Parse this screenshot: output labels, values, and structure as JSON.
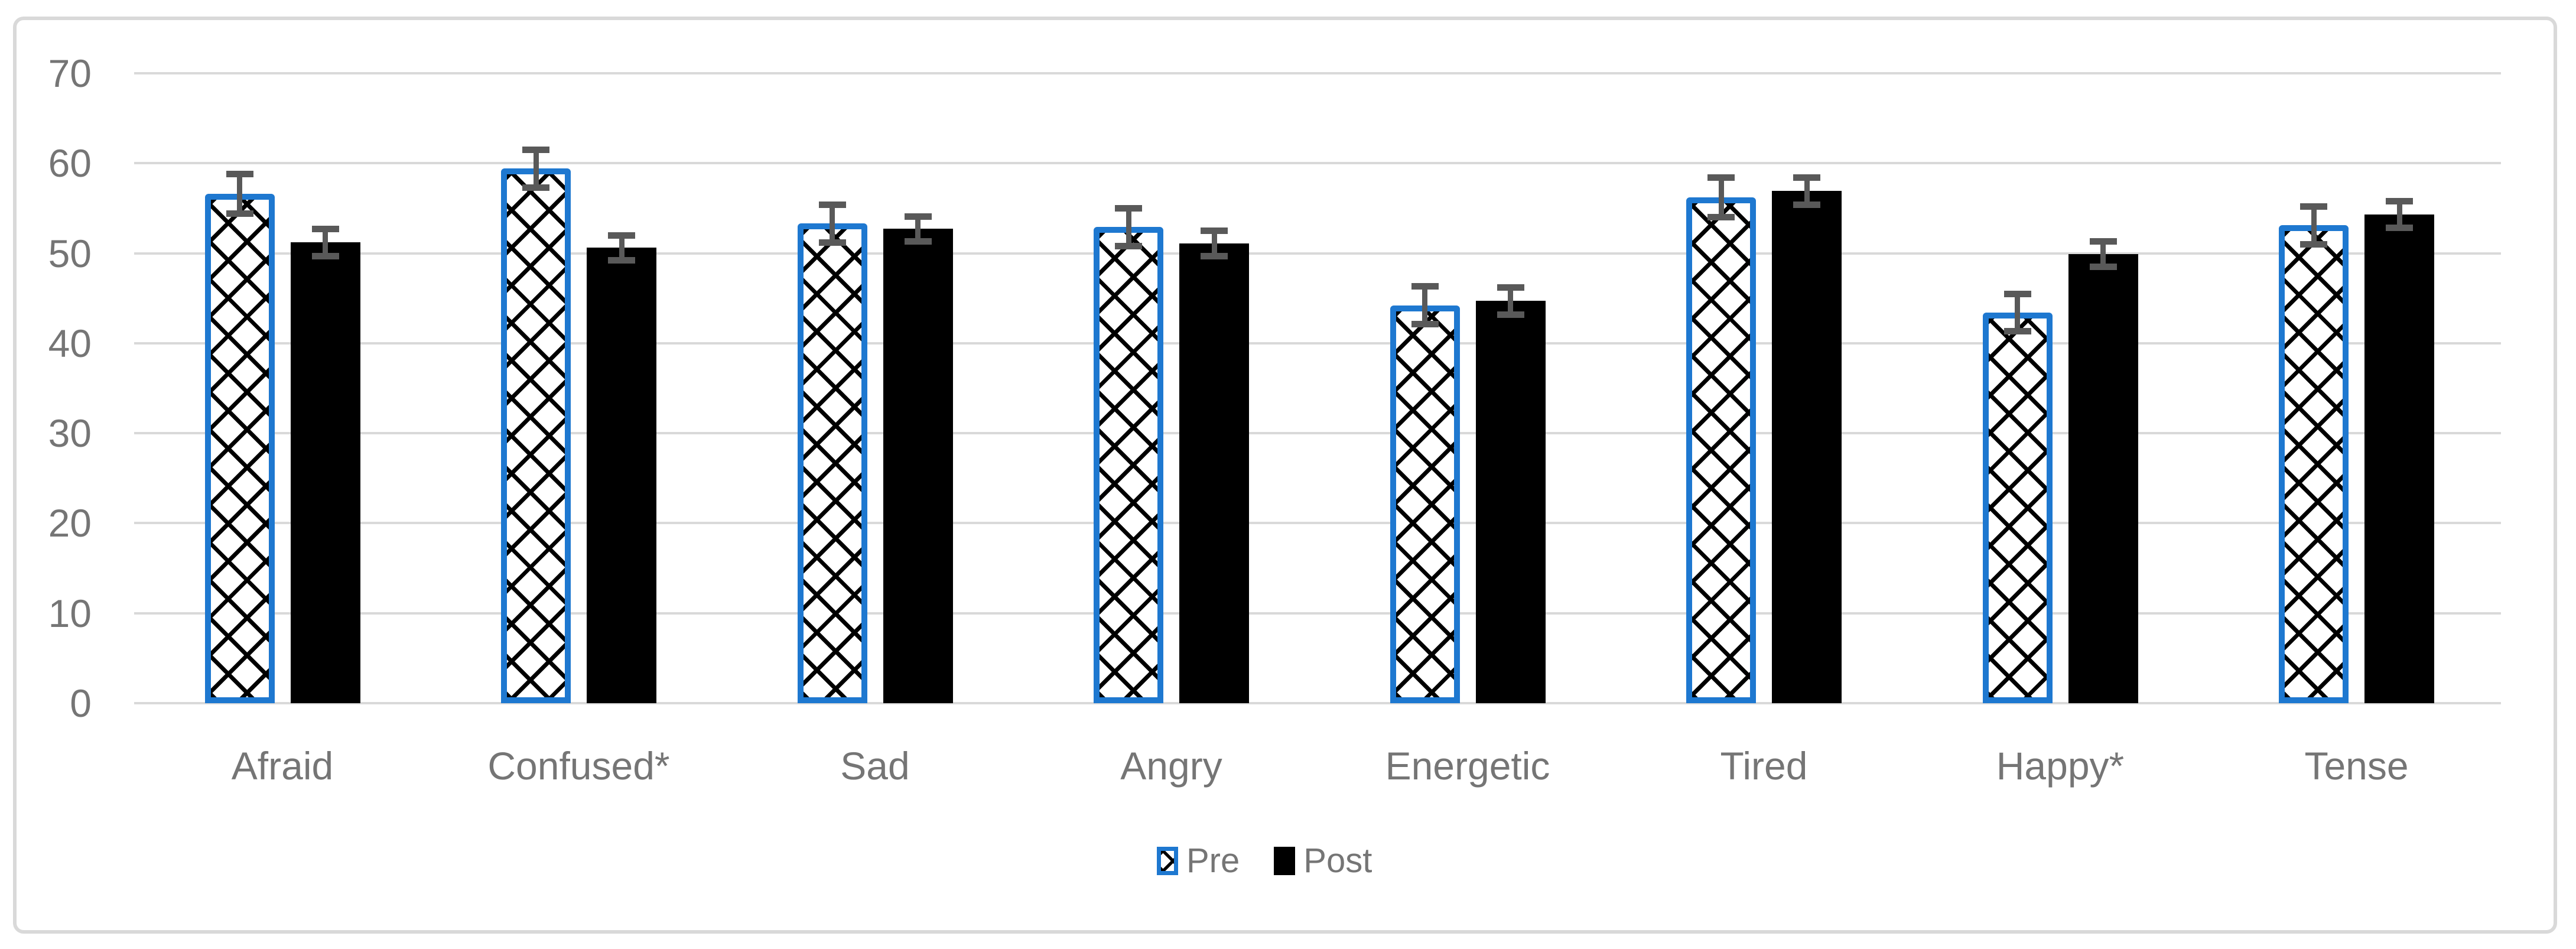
{
  "chart_data": {
    "type": "bar",
    "title": "",
    "xlabel": "",
    "ylabel": "",
    "categories": [
      "Afraid",
      "Confused*",
      "Sad",
      "Angry",
      "Energetic",
      "Tired",
      "Happy*",
      "Tense"
    ],
    "series": [
      {
        "name": "Pre",
        "style": "white-crosshatch-blue-border",
        "values": [
          56.6,
          59.4,
          53.3,
          52.9,
          44.2,
          56.2,
          43.4,
          53.1
        ],
        "errors": [
          2.1,
          2.0,
          2.0,
          2.0,
          2.0,
          2.1,
          2.0,
          2.0
        ]
      },
      {
        "name": "Post",
        "style": "solid-black",
        "values": [
          51.2,
          50.6,
          52.7,
          51.1,
          44.7,
          56.9,
          49.9,
          54.3
        ],
        "errors": [
          1.4,
          1.3,
          1.3,
          1.3,
          1.4,
          1.4,
          1.3,
          1.4
        ]
      }
    ],
    "y_ticks": [
      0,
      10,
      20,
      30,
      40,
      50,
      60,
      70
    ],
    "ylim": [
      0,
      70
    ],
    "grid": true,
    "error_bars": true,
    "legend_position": "bottom-center"
  },
  "colors": {
    "pre_border": "#1E78D0",
    "pre_pattern": "#000000",
    "post_fill": "#000000",
    "error_bar": "#595959",
    "gridline": "#D9D9D9",
    "frame_border": "#D9D9D9",
    "text": "#757575",
    "background": "#FFFFFF"
  }
}
